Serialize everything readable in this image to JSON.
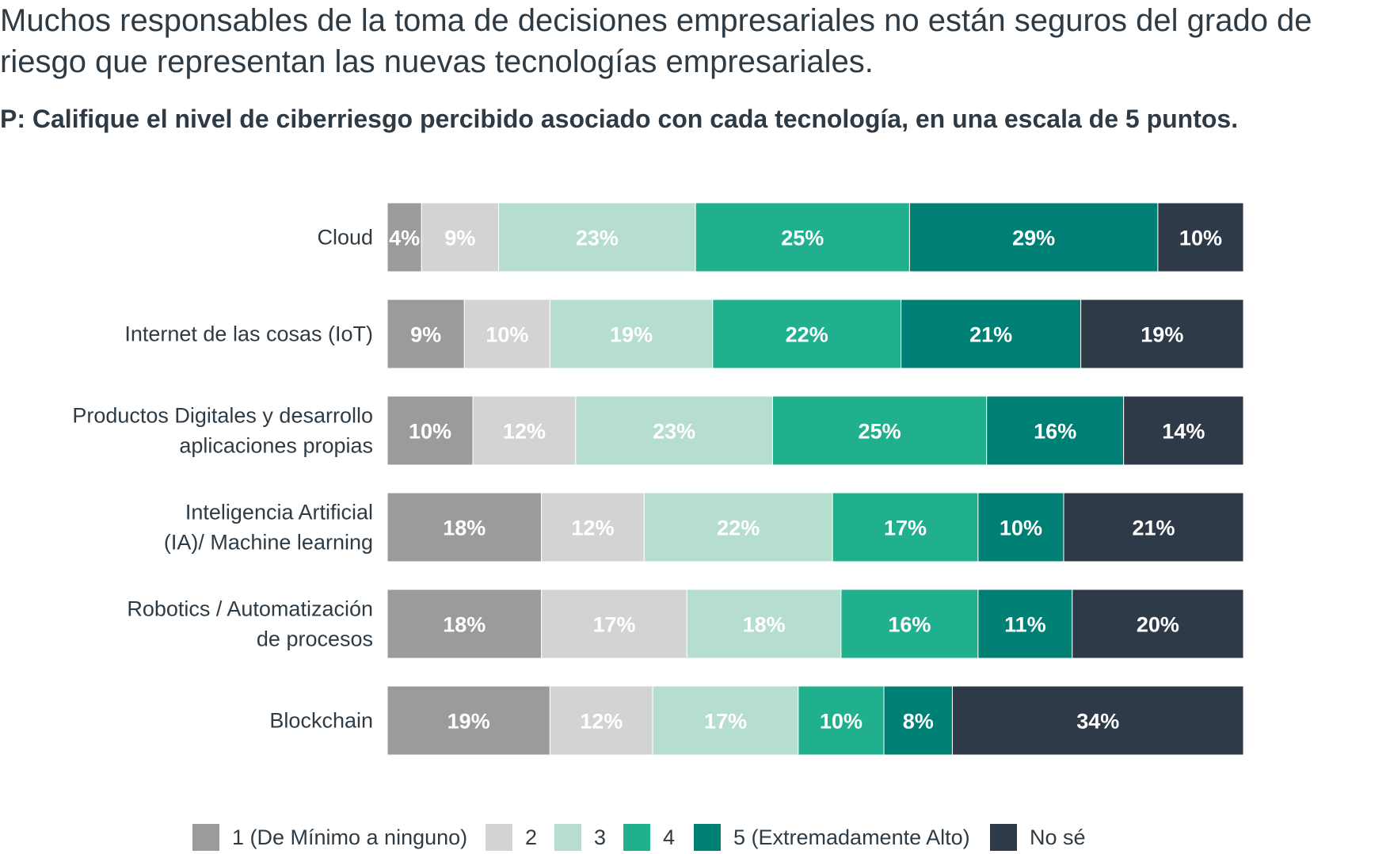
{
  "title": "Muchos responsables de la toma de decisiones empresariales no están seguros del grado de riesgo que representan las nuevas tecnologías empresariales.",
  "subtitle": "P: Califique el nivel de ciberriesgo percibido asociado con cada tecnología, en una escala de 5 puntos.",
  "chart_data": {
    "type": "bar",
    "orientation": "horizontal",
    "stacked": true,
    "unit": "%",
    "xlim": [
      0,
      100
    ],
    "grid": false,
    "legend_position": "bottom",
    "categories": [
      [
        "Cloud"
      ],
      [
        "Internet de las cosas (IoT)"
      ],
      [
        "Productos Digitales y desarrollo",
        "aplicaciones propias"
      ],
      [
        "Inteligencia Artificial",
        "(IA)/ Machine learning"
      ],
      [
        "Robotics / Automatización",
        "de procesos"
      ],
      [
        "Blockchain"
      ]
    ],
    "series": [
      {
        "name": "1 (De Mínimo a ninguno)",
        "color": "#9b9b9b",
        "label_color": "#ffffff",
        "values": [
          4,
          9,
          10,
          18,
          18,
          19
        ]
      },
      {
        "name": "2",
        "color": "#d3d3d3",
        "label_color": "#ffffff",
        "values": [
          9,
          10,
          12,
          12,
          17,
          12
        ]
      },
      {
        "name": "3",
        "color": "#b6dece",
        "label_color": "#ffffff",
        "values": [
          23,
          19,
          23,
          22,
          18,
          17
        ]
      },
      {
        "name": "4",
        "color": "#20b08e",
        "label_color": "#ffffff",
        "values": [
          25,
          22,
          25,
          17,
          16,
          10
        ]
      },
      {
        "name": "5 (Extremadamente Alto)",
        "color": "#008075",
        "label_color": "#ffffff",
        "values": [
          29,
          21,
          16,
          10,
          11,
          8
        ]
      },
      {
        "name": "No sé",
        "color": "#2e3a47",
        "label_color": "#ffffff",
        "values": [
          10,
          19,
          14,
          21,
          20,
          34
        ]
      }
    ]
  }
}
